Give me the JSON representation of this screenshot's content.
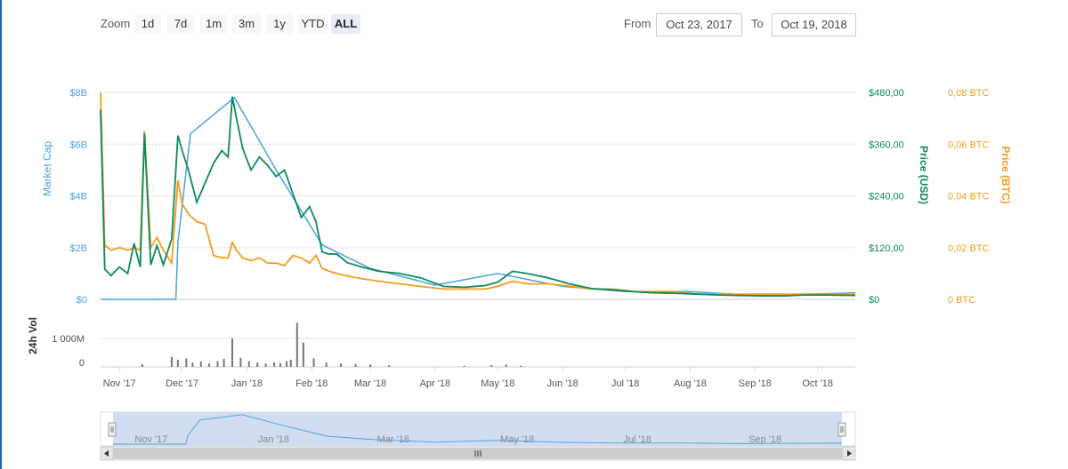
{
  "toolbar": {
    "zoom_label": "Zoom",
    "zoom_buttons": [
      "1d",
      "7d",
      "1m",
      "3m",
      "1y",
      "YTD",
      "ALL"
    ],
    "active_zoom": "ALL",
    "from_label": "From",
    "from_value": "Oct 23, 2017",
    "to_label": "To",
    "to_value": "Oct 19, 2018"
  },
  "colors": {
    "market_cap": "#4aa3df",
    "price_usd": "#0c8a5e",
    "price_btc": "#f59c1a",
    "volume": "#777777",
    "grid": "#e6e6e6",
    "navigator_fill": "#c9d8ef"
  },
  "chart_data": {
    "type": "line",
    "x_axis": {
      "ticks": [
        "Nov '17",
        "Dec '17",
        "Jan '18",
        "Feb '18",
        "Mar '18",
        "Apr '18",
        "May '18",
        "Jun '18",
        "Jul '18",
        "Aug '18",
        "Sep '18",
        "Oct '18"
      ],
      "range": [
        "2017-10-23",
        "2018-10-19"
      ]
    },
    "y_axes": {
      "market_cap": {
        "label": "Market Cap",
        "ticks": [
          "$8B",
          "$6B",
          "$4B",
          "$2B",
          "$0"
        ],
        "range": [
          0,
          8
        ]
      },
      "price_usd": {
        "label": "Price (USD)",
        "ticks": [
          "$480,00",
          "$360,00",
          "$240,00",
          "$120,00",
          "$0"
        ],
        "range": [
          0,
          480
        ]
      },
      "price_btc": {
        "label": "Price (BTC)",
        "ticks": [
          "0,08 BTC",
          "0,06 BTC",
          "0,04 BTC",
          "0,02 BTC",
          "0 BTC"
        ],
        "range": [
          0,
          0.08
        ]
      },
      "volume": {
        "label": "24h Vol",
        "ticks": [
          "1 000M",
          "0"
        ]
      }
    },
    "series": [
      {
        "name": "Market Cap",
        "x": [
          "2017-10-23",
          "2017-11-28",
          "2017-11-29",
          "2017-12-05",
          "2017-12-26",
          "2018-01-15",
          "2018-02-06",
          "2018-03-01",
          "2018-04-01",
          "2018-05-01",
          "2018-06-01",
          "2018-07-01",
          "2018-08-01",
          "2018-09-01",
          "2018-10-19"
        ],
        "y": [
          0,
          0,
          2.2,
          6.4,
          7.8,
          5.0,
          2.1,
          1.2,
          0.55,
          1.0,
          0.5,
          0.3,
          0.3,
          0.15,
          0.25
        ]
      },
      {
        "name": "Price (USD)",
        "x": [
          "2017-10-23",
          "2017-10-25",
          "2017-10-28",
          "2017-11-01",
          "2017-11-05",
          "2017-11-08",
          "2017-11-11",
          "2017-11-13",
          "2017-11-16",
          "2017-11-19",
          "2017-11-22",
          "2017-11-26",
          "2017-11-29",
          "2017-12-01",
          "2017-12-04",
          "2017-12-08",
          "2017-12-12",
          "2017-12-16",
          "2017-12-20",
          "2017-12-23",
          "2017-12-25",
          "2017-12-27",
          "2017-12-30",
          "2018-01-03",
          "2018-01-07",
          "2018-01-11",
          "2018-01-15",
          "2018-01-19",
          "2018-01-23",
          "2018-01-27",
          "2018-01-31",
          "2018-02-03",
          "2018-02-06",
          "2018-02-09",
          "2018-02-13",
          "2018-02-18",
          "2018-02-25",
          "2018-03-05",
          "2018-03-15",
          "2018-03-25",
          "2018-04-05",
          "2018-04-15",
          "2018-04-25",
          "2018-05-01",
          "2018-05-08",
          "2018-05-15",
          "2018-05-25",
          "2018-06-05",
          "2018-06-15",
          "2018-06-25",
          "2018-07-05",
          "2018-07-15",
          "2018-07-25",
          "2018-08-05",
          "2018-08-15",
          "2018-08-25",
          "2018-09-05",
          "2018-09-15",
          "2018-09-25",
          "2018-10-05",
          "2018-10-19"
        ],
        "y": [
          440,
          70,
          55,
          75,
          60,
          130,
          75,
          385,
          80,
          125,
          80,
          140,
          380,
          345,
          300,
          225,
          270,
          315,
          345,
          330,
          470,
          420,
          350,
          300,
          330,
          310,
          285,
          300,
          245,
          190,
          215,
          180,
          110,
          105,
          105,
          85,
          75,
          65,
          60,
          50,
          30,
          28,
          32,
          40,
          65,
          60,
          50,
          35,
          25,
          22,
          18,
          15,
          14,
          12,
          10,
          9,
          8,
          8,
          10,
          10,
          9
        ]
      },
      {
        "name": "Price (BTC)",
        "x": [
          "2017-10-23",
          "2017-10-25",
          "2017-10-28",
          "2017-11-01",
          "2017-11-05",
          "2017-11-08",
          "2017-11-11",
          "2017-11-13",
          "2017-11-16",
          "2017-11-19",
          "2017-11-22",
          "2017-11-26",
          "2017-11-29",
          "2017-12-01",
          "2017-12-04",
          "2017-12-08",
          "2017-12-12",
          "2017-12-16",
          "2017-12-20",
          "2017-12-23",
          "2017-12-25",
          "2017-12-27",
          "2017-12-30",
          "2018-01-03",
          "2018-01-07",
          "2018-01-11",
          "2018-01-15",
          "2018-01-19",
          "2018-01-23",
          "2018-01-27",
          "2018-01-31",
          "2018-02-03",
          "2018-02-06",
          "2018-02-09",
          "2018-02-13",
          "2018-02-18",
          "2018-02-25",
          "2018-03-05",
          "2018-03-15",
          "2018-03-25",
          "2018-04-05",
          "2018-04-15",
          "2018-04-25",
          "2018-05-01",
          "2018-05-08",
          "2018-05-15",
          "2018-05-25",
          "2018-06-05",
          "2018-06-15",
          "2018-06-25",
          "2018-07-05",
          "2018-07-15",
          "2018-07-25",
          "2018-08-05",
          "2018-08-15",
          "2018-08-25",
          "2018-09-05",
          "2018-09-15",
          "2018-09-25",
          "2018-10-05",
          "2018-10-19"
        ],
        "y": [
          0.08,
          0.021,
          0.019,
          0.02,
          0.019,
          0.02,
          0.019,
          0.065,
          0.02,
          0.024,
          0.019,
          0.014,
          0.046,
          0.037,
          0.033,
          0.03,
          0.029,
          0.017,
          0.016,
          0.016,
          0.022,
          0.019,
          0.016,
          0.015,
          0.016,
          0.014,
          0.014,
          0.013,
          0.017,
          0.016,
          0.014,
          0.017,
          0.012,
          0.011,
          0.01,
          0.009,
          0.008,
          0.007,
          0.006,
          0.005,
          0.004,
          0.004,
          0.004,
          0.005,
          0.007,
          0.006,
          0.006,
          0.005,
          0.004,
          0.004,
          0.003,
          0.003,
          0.003,
          0.002,
          0.002,
          0.002,
          0.002,
          0.002,
          0.002,
          0.002,
          0.002
        ]
      },
      {
        "name": "24h Vol",
        "x": [
          "2017-11-12",
          "2017-11-26",
          "2017-11-29",
          "2017-12-03",
          "2017-12-06",
          "2017-12-10",
          "2017-12-14",
          "2017-12-18",
          "2017-12-21",
          "2017-12-25",
          "2017-12-29",
          "2018-01-02",
          "2018-01-06",
          "2018-01-10",
          "2018-01-14",
          "2018-01-17",
          "2018-01-20",
          "2018-01-22",
          "2018-01-25",
          "2018-01-28",
          "2018-02-02",
          "2018-02-08",
          "2018-02-15",
          "2018-02-22",
          "2018-03-01",
          "2018-03-10",
          "2018-04-15",
          "2018-04-28",
          "2018-05-05",
          "2018-05-12"
        ],
        "y": [
          90,
          350,
          250,
          300,
          150,
          180,
          120,
          200,
          280,
          1000,
          320,
          200,
          150,
          120,
          150,
          130,
          200,
          250,
          1550,
          850,
          300,
          150,
          120,
          100,
          80,
          60,
          40,
          60,
          80,
          40
        ]
      }
    ],
    "legend": "none",
    "grid": true
  },
  "navigator": {
    "ticks": [
      "Nov '17",
      "Jan '18",
      "Mar '18",
      "May '18",
      "Jul '18",
      "Sep '18"
    ]
  }
}
